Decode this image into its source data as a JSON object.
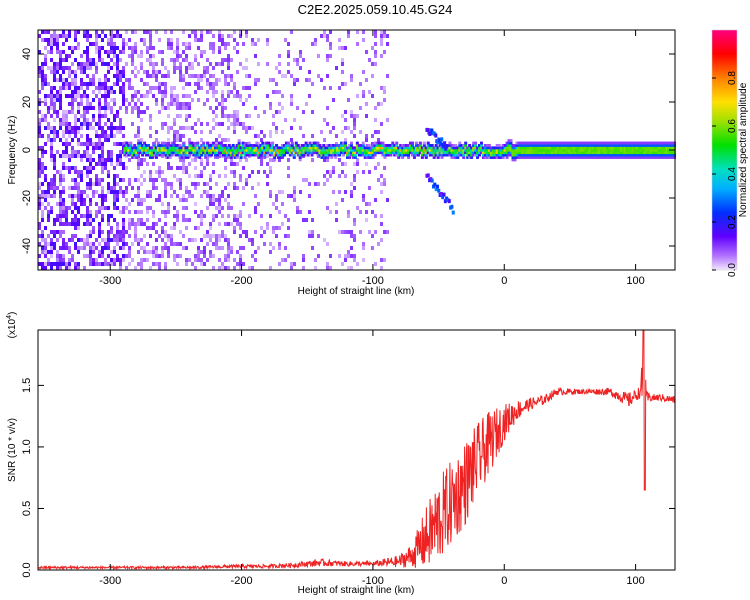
{
  "figure": {
    "title": "C2E2.2025.059.10.45.G24"
  },
  "chart_data": [
    {
      "type": "heatmap",
      "title": "C2E2.2025.059.10.45.G24",
      "xlabel": "Height of straight line (km)",
      "ylabel": "Frequency (Hz)",
      "xlim": [
        -355,
        130
      ],
      "ylim": [
        -50,
        50
      ],
      "xticks": [
        -300,
        -200,
        -100,
        0,
        100
      ],
      "yticks": [
        -40,
        -20,
        0,
        20,
        40
      ],
      "colorbar": {
        "label": "Normalized spectral amplitude",
        "range": [
          0.0,
          1.0
        ],
        "ticks": [
          "0.0",
          "0.2",
          "0.4",
          "0.6",
          "0.8"
        ],
        "tick_values": [
          0.0,
          0.2,
          0.4,
          0.6,
          0.8
        ]
      },
      "colors": {
        "low": "#d9b3ff",
        "mid": "#00e0e0",
        "high": "#ff0000",
        "top": "#ff00a0"
      },
      "features": [
        {
          "name": "carrier",
          "freq": 0,
          "x_from": -290,
          "x_to": 130,
          "amp": 0.6
        },
        {
          "name": "upper sideband",
          "x": [
            -60,
            -45
          ],
          "freq": [
            10,
            2
          ]
        },
        {
          "name": "lower sideband",
          "x": [
            -60,
            -40
          ],
          "freq": [
            -10,
            -24
          ]
        }
      ]
    },
    {
      "type": "line",
      "xlabel": "Height of straight line (km)",
      "ylabel": "SNR (10 * v/v)",
      "y_multiplier": "(x10",
      "y_multiplier_exp": "4",
      "y_multiplier_close": ")",
      "xlim": [
        -355,
        130
      ],
      "ylim": [
        0,
        1.95
      ],
      "xticks": [
        -300,
        -200,
        -100,
        0,
        100
      ],
      "yticks": [
        0.0,
        0.5,
        1.0,
        1.5
      ],
      "ytick_labels": [
        "0.0",
        "0.5",
        "1.0",
        "1.5"
      ],
      "color": "#ee2222",
      "series": [
        {
          "x": [
            -355,
            -320,
            -280,
            -240,
            -200,
            -180,
            -160,
            -140,
            -120,
            -100,
            -80,
            -70,
            -60,
            -50,
            -40,
            -30,
            -20,
            -10,
            0,
            10,
            20,
            30,
            40,
            60,
            80,
            95,
            100,
            104,
            106,
            108,
            112,
            120,
            130
          ],
          "y": [
            0.02,
            0.02,
            0.02,
            0.02,
            0.03,
            0.03,
            0.04,
            0.06,
            0.05,
            0.05,
            0.07,
            0.12,
            0.25,
            0.4,
            0.55,
            0.7,
            0.9,
            1.05,
            1.2,
            1.3,
            1.35,
            1.38,
            1.45,
            1.45,
            1.45,
            1.38,
            1.42,
            1.45,
            1.55,
            1.4,
            1.4,
            1.4,
            1.38
          ],
          "noise": [
            0.01,
            0.01,
            0.01,
            0.01,
            0.015,
            0.015,
            0.02,
            0.03,
            0.02,
            0.02,
            0.05,
            0.1,
            0.25,
            0.35,
            0.35,
            0.35,
            0.3,
            0.25,
            0.15,
            0.08,
            0.05,
            0.04,
            0.03,
            0.02,
            0.03,
            0.06,
            0.05,
            0.05,
            0.5,
            0.06,
            0.03,
            0.03,
            0.03
          ]
        }
      ]
    }
  ]
}
